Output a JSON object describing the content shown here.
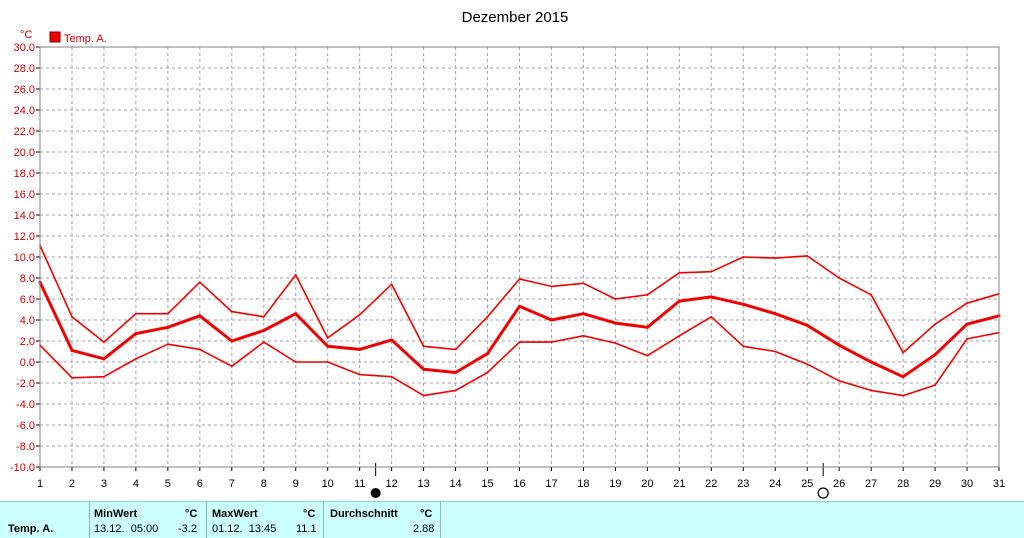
{
  "chart_data": {
    "type": "line",
    "title": "Dezember 2015",
    "ylabel": "°C",
    "xlim": [
      1,
      31
    ],
    "ylim": [
      -10,
      30
    ],
    "x_ticks": [
      1,
      2,
      3,
      4,
      5,
      6,
      7,
      8,
      9,
      10,
      11,
      12,
      13,
      14,
      15,
      16,
      17,
      18,
      19,
      20,
      21,
      22,
      23,
      24,
      25,
      26,
      27,
      28,
      29,
      30,
      31
    ],
    "y_ticks": [
      "-10.0",
      "-8.0",
      "-6.0",
      "-4.0",
      "-2.0",
      "0.0",
      "2.0",
      "4.0",
      "6.0",
      "8.0",
      "10.0",
      "12.0",
      "14.0",
      "16.0",
      "18.0",
      "20.0",
      "22.0",
      "24.0",
      "26.0",
      "28.0",
      "30.0"
    ],
    "grid": true,
    "legend": {
      "label": "Temp. A.",
      "color": "#ee0000",
      "placement": "top-left"
    },
    "colors": {
      "line": "#ee0000",
      "axis_text": "#cc0000",
      "frame": "#808080",
      "grid": "#a0a0a0"
    },
    "x": [
      1,
      2,
      3,
      4,
      5,
      6,
      7,
      8,
      9,
      10,
      11,
      12,
      13,
      14,
      15,
      16,
      17,
      18,
      19,
      20,
      21,
      22,
      23,
      24,
      25,
      26,
      27,
      28,
      29,
      30,
      31
    ],
    "series": [
      {
        "role": "max",
        "values": [
          11.1,
          4.3,
          1.9,
          4.6,
          4.6,
          7.6,
          4.8,
          4.3,
          8.3,
          2.3,
          4.5,
          7.4,
          1.5,
          1.2,
          4.3,
          7.9,
          7.2,
          7.5,
          6.0,
          6.4,
          8.5,
          8.6,
          10.0,
          9.9,
          10.1,
          8.0,
          6.4,
          0.9,
          3.6,
          5.6,
          6.5
        ]
      },
      {
        "role": "mean",
        "values": [
          7.6,
          1.1,
          0.3,
          2.7,
          3.3,
          4.4,
          2.0,
          3.0,
          4.6,
          1.5,
          1.2,
          2.1,
          -0.7,
          -1.0,
          0.8,
          5.3,
          4.0,
          4.6,
          3.7,
          3.3,
          5.8,
          6.2,
          5.5,
          4.6,
          3.5,
          1.6,
          0.0,
          -1.4,
          0.7,
          3.6,
          4.4
        ]
      },
      {
        "role": "min",
        "values": [
          1.6,
          -1.5,
          -1.4,
          0.3,
          1.7,
          1.2,
          -0.4,
          1.9,
          0.0,
          0.0,
          -1.2,
          -1.4,
          -3.2,
          -2.7,
          -1.0,
          1.9,
          1.9,
          2.5,
          1.8,
          0.6,
          2.5,
          4.3,
          1.5,
          1.0,
          -0.2,
          -1.8,
          -2.7,
          -3.2,
          -2.2,
          2.2,
          2.8
        ]
      }
    ],
    "moon_phases": [
      {
        "day": 11.5,
        "phase": "new-moon"
      },
      {
        "day": 25.5,
        "phase": "full-moon"
      }
    ]
  },
  "stats": {
    "row_label": "Temp. A.",
    "min": {
      "header": "MinWert",
      "unit": "°C",
      "datetime": "13.12.  05:00",
      "value": "-3.2"
    },
    "max": {
      "header": "MaxWert",
      "unit": "°C",
      "datetime": "01.12.  13:45",
      "value": "11.1"
    },
    "avg": {
      "header": "Durchschnitt",
      "unit": "°C",
      "value": "2.88"
    }
  }
}
